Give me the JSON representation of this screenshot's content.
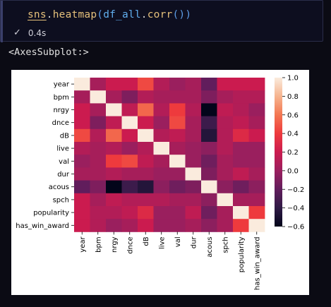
{
  "code_cell": {
    "code_tokens": {
      "obj": "sns",
      "dot1": ".",
      "fn": "heatmap",
      "open1": "(",
      "arg": "df_all",
      "dot2": ".",
      "method": "corr",
      "open2": "(",
      "close2": ")",
      "close1": ")"
    },
    "status_icon": "check-icon",
    "exec_time": "0.4s"
  },
  "output": {
    "repr_text": "<AxesSubplot:>"
  },
  "chart_data": {
    "type": "heatmap",
    "labels": [
      "year",
      "bpm",
      "nrgy",
      "dnce",
      "dB",
      "live",
      "val",
      "dur",
      "acous",
      "spch",
      "popularity",
      "has_win_award"
    ],
    "matrix": [
      [
        1.0,
        0.05,
        0.2,
        0.2,
        0.45,
        0.1,
        0.0,
        0.05,
        -0.2,
        0.2,
        0.2,
        0.2
      ],
      [
        0.05,
        1.0,
        0.05,
        -0.1,
        0.1,
        0.05,
        0.05,
        0.05,
        -0.1,
        0.05,
        0.1,
        0.1
      ],
      [
        0.2,
        0.05,
        1.0,
        0.15,
        0.55,
        0.1,
        0.4,
        0.1,
        -0.6,
        0.15,
        0.1,
        0.0
      ],
      [
        0.2,
        -0.1,
        0.15,
        1.0,
        0.2,
        0.0,
        0.45,
        0.05,
        -0.35,
        0.1,
        0.15,
        0.05
      ],
      [
        0.45,
        0.1,
        0.55,
        0.2,
        1.0,
        0.1,
        0.15,
        0.05,
        -0.45,
        0.1,
        0.3,
        0.2
      ],
      [
        0.1,
        0.05,
        0.1,
        0.0,
        0.1,
        1.0,
        0.05,
        0.0,
        -0.05,
        0.1,
        0.0,
        0.0
      ],
      [
        0.0,
        0.05,
        0.4,
        0.45,
        0.15,
        0.05,
        1.0,
        0.0,
        -0.15,
        0.05,
        0.0,
        0.0
      ],
      [
        0.05,
        0.05,
        0.1,
        0.05,
        0.05,
        0.0,
        0.0,
        1.0,
        -0.1,
        0.05,
        0.15,
        0.05
      ],
      [
        -0.2,
        -0.1,
        -0.6,
        -0.35,
        -0.45,
        -0.05,
        -0.15,
        -0.1,
        1.0,
        -0.05,
        -0.15,
        -0.05
      ],
      [
        0.2,
        0.05,
        0.15,
        0.1,
        0.1,
        0.1,
        0.05,
        0.05,
        -0.05,
        1.0,
        0.05,
        0.05
      ],
      [
        0.2,
        0.1,
        0.1,
        0.15,
        0.3,
        0.0,
        0.0,
        0.15,
        -0.15,
        0.05,
        1.0,
        0.4
      ],
      [
        0.2,
        0.1,
        0.0,
        0.05,
        0.2,
        0.0,
        0.0,
        0.05,
        -0.05,
        0.05,
        0.4,
        1.0
      ]
    ],
    "vmin": -0.6,
    "vmax": 1.0,
    "colorbar_ticks": [
      "1.0",
      "0.8",
      "0.6",
      "0.4",
      "0.2",
      "0.0",
      "−0.2",
      "−0.4",
      "−0.6"
    ],
    "colormap": "rocket",
    "grid": false,
    "colorbar_position": "right"
  }
}
